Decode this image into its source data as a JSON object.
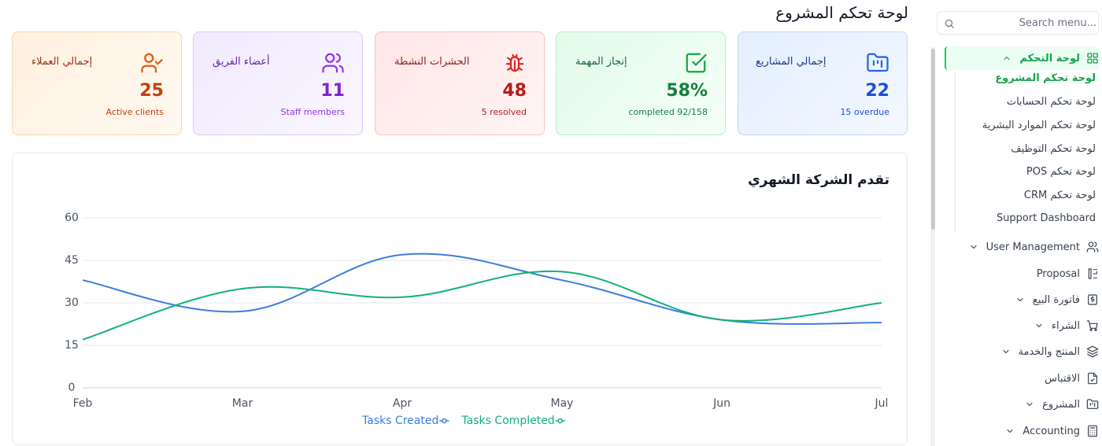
{
  "page": {
    "title": "لوحة تحكم المشروع"
  },
  "cards": {
    "clients": {
      "title": "إجمالي العملاء",
      "value": "25",
      "sub": "Active clients",
      "icon": "user-check-icon",
      "color": "#c2410c"
    },
    "team": {
      "title": "أعضاء الفريق",
      "value": "11",
      "sub": "Staff members",
      "icon": "users-icon",
      "color": "#7e22ce"
    },
    "bugs": {
      "title": "الحشرات النشطة",
      "value": "48",
      "sub": "5 resolved",
      "icon": "bug-icon",
      "color": "#b91c1c"
    },
    "tasks": {
      "title": "إنجاز المهمة",
      "value": "58%",
      "sub": "completed 92/158",
      "icon": "check-square-icon",
      "color": "#15803d"
    },
    "projects": {
      "title": "إجمالي المشاريع",
      "value": "22",
      "sub": "15 overdue",
      "icon": "folder-kanban-icon",
      "color": "#1d4ed8"
    }
  },
  "chart_card": {
    "title": "تقدم الشركة الشهري"
  },
  "chart_data": {
    "type": "line",
    "categories": [
      "Feb",
      "Mar",
      "Apr",
      "May",
      "Jun",
      "Jul"
    ],
    "series": [
      {
        "name": "Tasks Created",
        "color": "#3b7ddd",
        "values": [
          38,
          27,
          47,
          38,
          24,
          23
        ]
      },
      {
        "name": "Tasks Completed",
        "color": "#12b07a",
        "values": [
          17,
          35,
          32,
          41,
          24,
          30
        ]
      }
    ],
    "ylim": [
      0,
      60
    ],
    "yticks": [
      "0",
      "15",
      "30",
      "45",
      "60"
    ],
    "grid": true,
    "legend_position": "bottom"
  },
  "sidebar": {
    "search_placeholder": "Search menu...",
    "dashboard": {
      "label": "لوحة التحكم",
      "icon": "grid-icon"
    },
    "sub_items": [
      "لوحة تحكم المشروع",
      "لوحة تحكم الحسابات",
      "لوحة تحكم الموارد البشرية",
      "لوحة تحكم التوظيف",
      "لوحة تحكم POS",
      "لوحة تحكم CRM",
      "Support Dashboard"
    ],
    "items": [
      {
        "label": "User Management",
        "icon": "users-icon",
        "chevron": true
      },
      {
        "label": "Proposal",
        "icon": "proposal-icon",
        "chevron": false
      },
      {
        "label": "فاتورة البيع",
        "icon": "invoice-icon",
        "chevron": true
      },
      {
        "label": "الشراء",
        "icon": "cart-icon",
        "chevron": true
      },
      {
        "label": "المنتج والخدمة",
        "icon": "layers-icon",
        "chevron": true
      },
      {
        "label": "الاقتباس",
        "icon": "file-check-icon",
        "chevron": false
      },
      {
        "label": "المشروع",
        "icon": "folder-icon",
        "chevron": true
      },
      {
        "label": "Accounting",
        "icon": "calculator-icon",
        "chevron": true
      }
    ]
  }
}
